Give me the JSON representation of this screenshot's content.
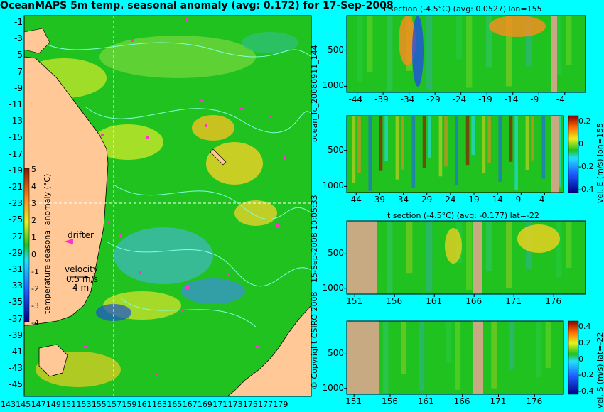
{
  "title": "OceanMAPS 5m temp. seasonal anomaly (avg: 0.172) for 17-Sep-2008",
  "map": {
    "lat_ticks": [
      "-1",
      "-3",
      "-5",
      "-7",
      "-9",
      "-11",
      "-13",
      "-15",
      "-17",
      "-19",
      "-21",
      "-23",
      "-25",
      "-27",
      "-29",
      "-31",
      "-33",
      "-35",
      "-37",
      "-39",
      "-41",
      "-43",
      "-45"
    ],
    "lon_ticks": [
      "143",
      "145",
      "147",
      "149",
      "151",
      "153",
      "155",
      "157",
      "159",
      "161",
      "163",
      "165",
      "167",
      "169",
      "171",
      "173",
      "175",
      "177",
      "179"
    ],
    "colorbar_label": "temperature seasonal anomaly (°C)",
    "colorbar_ticks": [
      "5",
      "4",
      "3",
      "2",
      "1",
      "0",
      "-1",
      "-2",
      "-3",
      "-4"
    ],
    "drifter_label": "drifter",
    "velocity_label": "velocity",
    "velocity_scale": "0.5 m/s",
    "velocity_subscale": "4 m",
    "colors": {
      "land": "#ffc896",
      "ocean": "#1fc21f",
      "contour": "#7fffe0",
      "drifter": "#ff33cc"
    }
  },
  "panels": [
    {
      "title": "t section (-4.5°C) (avg: 0.0527) lon=155",
      "x_ticks": [
        "-44",
        "-39",
        "-34",
        "-29",
        "-24",
        "-19",
        "-14",
        "-9",
        "-4"
      ],
      "y_ticks": [
        "500",
        "1000"
      ]
    },
    {
      "title": "",
      "x_ticks": [
        "-44",
        "-39",
        "-34",
        "-29",
        "-24",
        "-19",
        "-14",
        "-9",
        "-4"
      ],
      "y_ticks": [
        "500",
        "1000"
      ],
      "cbar_label": "vel. E (m/s) lon=155",
      "cbar_ticks": [
        "0.2",
        "0",
        "-0.2",
        "-0.4"
      ]
    },
    {
      "title": "t section (-4.5°C) (avg: -0.177) lat=-22",
      "x_ticks": [
        "151",
        "156",
        "161",
        "166",
        "171",
        "176"
      ],
      "y_ticks": [
        "500",
        "1000"
      ]
    },
    {
      "title": "",
      "x_ticks": [
        "151",
        "156",
        "161",
        "166",
        "171",
        "176"
      ],
      "y_ticks": [
        "500",
        "1000"
      ],
      "cbar_label": "vel. S (m/s) lat=-22",
      "cbar_ticks": [
        "0.4",
        "0.2",
        "0",
        "-0.2",
        "-0.4"
      ]
    }
  ],
  "side_texts": {
    "run_id": "ocean_fc_20080911_144",
    "timestamp": "15-Sep-2008 10:05:33",
    "copyright": "© Copyright CSIRO 2008"
  },
  "chart_data": [
    {
      "type": "heatmap",
      "title": "OceanMAPS 5m temp. seasonal anomaly (avg: 0.172) for 17-Sep-2008",
      "x_range": [
        142,
        180
      ],
      "y_range": [
        -45,
        0
      ],
      "z_range": [
        -4,
        5
      ],
      "z_label": "temperature seasonal anomaly (°C)"
    },
    {
      "type": "heatmap",
      "title": "t section (-4.5°C) (avg: 0.0527) lon=155",
      "x_range": [
        -46,
        0
      ],
      "y_range": [
        0,
        1100
      ]
    },
    {
      "type": "heatmap",
      "title": "",
      "x_range": [
        -46,
        0
      ],
      "y_range": [
        0,
        1100
      ],
      "z_label": "vel. E (m/s) lon=155",
      "z_range": [
        -0.4,
        0.3
      ]
    },
    {
      "type": "heatmap",
      "title": "t section (-4.5°C) (avg: -0.177) lat=-22",
      "x_range": [
        150,
        180
      ],
      "y_range": [
        0,
        1100
      ]
    },
    {
      "type": "heatmap",
      "title": "",
      "x_range": [
        150,
        180
      ],
      "y_range": [
        0,
        1100
      ],
      "z_label": "vel. S (m/s) lat=-22",
      "z_range": [
        -0.4,
        0.4
      ]
    }
  ]
}
